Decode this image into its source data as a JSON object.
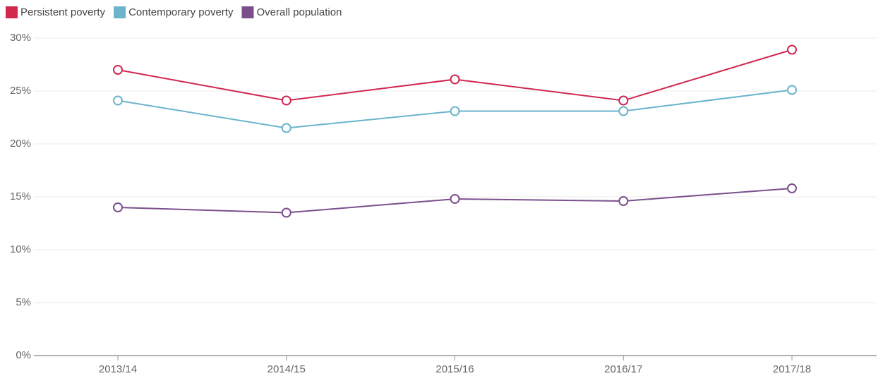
{
  "chart_data": {
    "type": "line",
    "categories": [
      "2013/14",
      "2014/15",
      "2015/16",
      "2016/17",
      "2017/18"
    ],
    "series": [
      {
        "name": "Persistent poverty",
        "color": "#d0284f",
        "values": [
          27,
          24.1,
          26.1,
          24.1,
          28.9
        ]
      },
      {
        "name": "Contemporary poverty",
        "color": "#6bb4cc",
        "values": [
          24.1,
          21.5,
          23.1,
          23.1,
          25.1
        ]
      },
      {
        "name": "Overall population",
        "color": "#7b4f8c",
        "values": [
          14.0,
          13.5,
          14.8,
          14.6,
          15.8
        ]
      }
    ],
    "ylim": [
      0,
      30
    ],
    "yticks": [
      {
        "value": 0,
        "label": "0%"
      },
      {
        "value": 5,
        "label": "5%"
      },
      {
        "value": 10,
        "label": "10%"
      },
      {
        "value": 15,
        "label": "15%"
      },
      {
        "value": 20,
        "label": "20%"
      },
      {
        "value": 25,
        "label": "25%"
      },
      {
        "value": 30,
        "label": "30%"
      }
    ],
    "grid": true,
    "legend": "top-left"
  }
}
